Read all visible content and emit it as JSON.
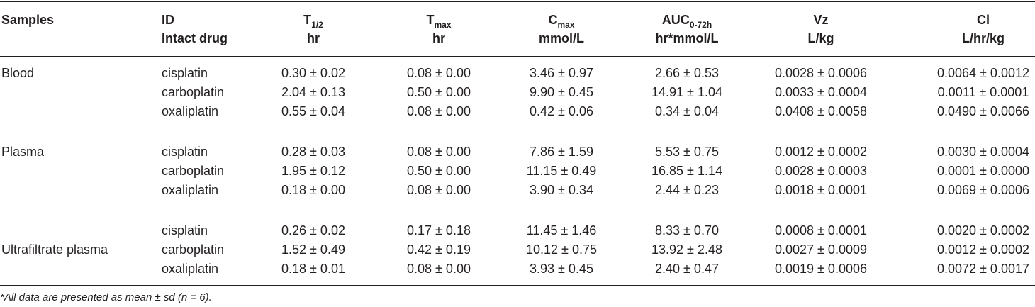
{
  "header": {
    "samples": "Samples",
    "id_line1": "ID",
    "id_line2": "Intact drug",
    "t_half_base": "T",
    "t_half_sub": "1/2",
    "t_half_unit": "hr",
    "tmax_base": "T",
    "tmax_sub": "max",
    "tmax_unit": "hr",
    "cmax_base": "C",
    "cmax_sub": "max",
    "cmax_unit": "mmol/L",
    "auc_base": "AUC",
    "auc_sub": "0-72h",
    "auc_unit": "hr*mmol/L",
    "vz": "Vz",
    "vz_unit": "L/kg",
    "cl": "Cl",
    "cl_unit": "L/hr/kg"
  },
  "groups": [
    {
      "sample": "Blood",
      "rows": [
        {
          "drug": "cisplatin",
          "t_half": "0.30 ± 0.02",
          "tmax": "0.08 ± 0.00",
          "cmax": "3.46 ± 0.97",
          "auc": "2.66 ± 0.53",
          "vz": "0.0028 ± 0.0006",
          "cl": "0.0064 ± 0.0012"
        },
        {
          "drug": "carboplatin",
          "t_half": "2.04 ± 0.13",
          "tmax": "0.50 ± 0.00",
          "cmax": "9.90 ± 0.45",
          "auc": "14.91 ± 1.04",
          "vz": "0.0033 ± 0.0004",
          "cl": "0.0011 ± 0.0001"
        },
        {
          "drug": "oxaliplatin",
          "t_half": "0.55 ± 0.04",
          "tmax": "0.08 ± 0.00",
          "cmax": "0.42 ± 0.06",
          "auc": "0.34 ± 0.04",
          "vz": "0.0408 ± 0.0058",
          "cl": "0.0490 ± 0.0066"
        }
      ]
    },
    {
      "sample": "Plasma",
      "rows": [
        {
          "drug": "cisplatin",
          "t_half": "0.28 ± 0.03",
          "tmax": "0.08 ± 0.00",
          "cmax": "7.86 ± 1.59",
          "auc": "5.53 ± 0.75",
          "vz": "0.0012 ± 0.0002",
          "cl": "0.0030 ± 0.0004"
        },
        {
          "drug": "carboplatin",
          "t_half": "1.95 ± 0.12",
          "tmax": "0.50 ± 0.00",
          "cmax": "11.15 ± 0.49",
          "auc": "16.85 ± 1.14",
          "vz": "0.0028 ± 0.0003",
          "cl": "0.0001 ± 0.0000"
        },
        {
          "drug": "oxaliplatin",
          "t_half": "0.18 ± 0.00",
          "tmax": "0.08 ± 0.00",
          "cmax": "3.90 ± 0.34",
          "auc": "2.44 ± 0.23",
          "vz": "0.0018 ± 0.0001",
          "cl": "0.0069 ± 0.0006"
        }
      ]
    },
    {
      "sample": "Ultrafiltrate plasma",
      "rows": [
        {
          "drug": "cisplatin",
          "t_half": "0.26 ± 0.02",
          "tmax": "0.17 ± 0.18",
          "cmax": "11.45 ± 1.46",
          "auc": "8.33 ± 0.70",
          "vz": "0.0008 ± 0.0001",
          "cl": "0.0020 ± 0.0002"
        },
        {
          "drug": "carboplatin",
          "t_half": "1.52 ± 0.49",
          "tmax": "0.42 ± 0.19",
          "cmax": "10.12 ± 0.75",
          "auc": "13.92 ± 2.48",
          "vz": "0.0027 ± 0.0009",
          "cl": "0.0012 ± 0.0002"
        },
        {
          "drug": "oxaliplatin",
          "t_half": "0.18 ± 0.01",
          "tmax": "0.08 ± 0.00",
          "cmax": "3.93 ± 0.45",
          "auc": "2.40 ± 0.47",
          "vz": "0.0019 ± 0.0006",
          "cl": "0.0072 ± 0.0017"
        }
      ]
    }
  ],
  "footnote": "*All data are presented as mean ± sd (n = 6)."
}
